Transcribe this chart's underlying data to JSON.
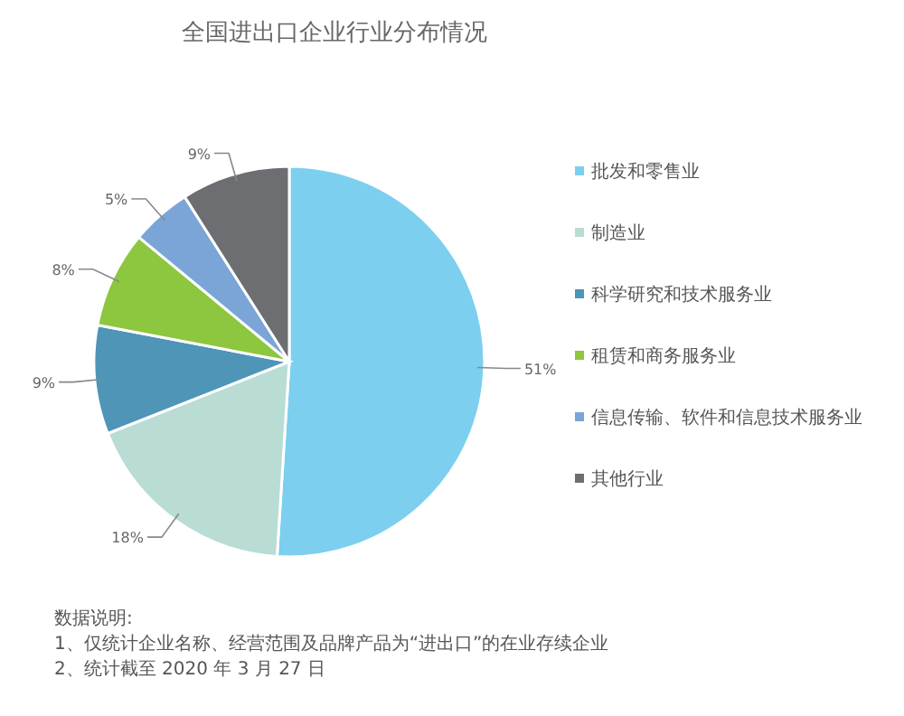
{
  "chart_data": {
    "type": "pie",
    "title": "全国进出口企业行业分布情况",
    "categories": [
      "批发和零售业",
      "制造业",
      "科学研究和技术服务业",
      "租赁和商务服务业",
      "信息传输、软件和信息技术服务业",
      "其他行业"
    ],
    "values": [
      51,
      18,
      9,
      8,
      5,
      9
    ],
    "colors": [
      "#7ccfef",
      "#b9dcd4",
      "#4e95b8",
      "#8dc63f",
      "#7aa5d6",
      "#6d6e71"
    ],
    "value_labels": [
      "51%",
      "18%",
      "9%",
      "8%",
      "5%",
      "9%"
    ],
    "legend": "right",
    "annotations": [
      "数据说明:",
      "1、仅统计企业名称、经营范围及品牌产品为“进出口”的在业存续企业",
      "2、统计截至 2020 年 3 月 27 日"
    ]
  }
}
